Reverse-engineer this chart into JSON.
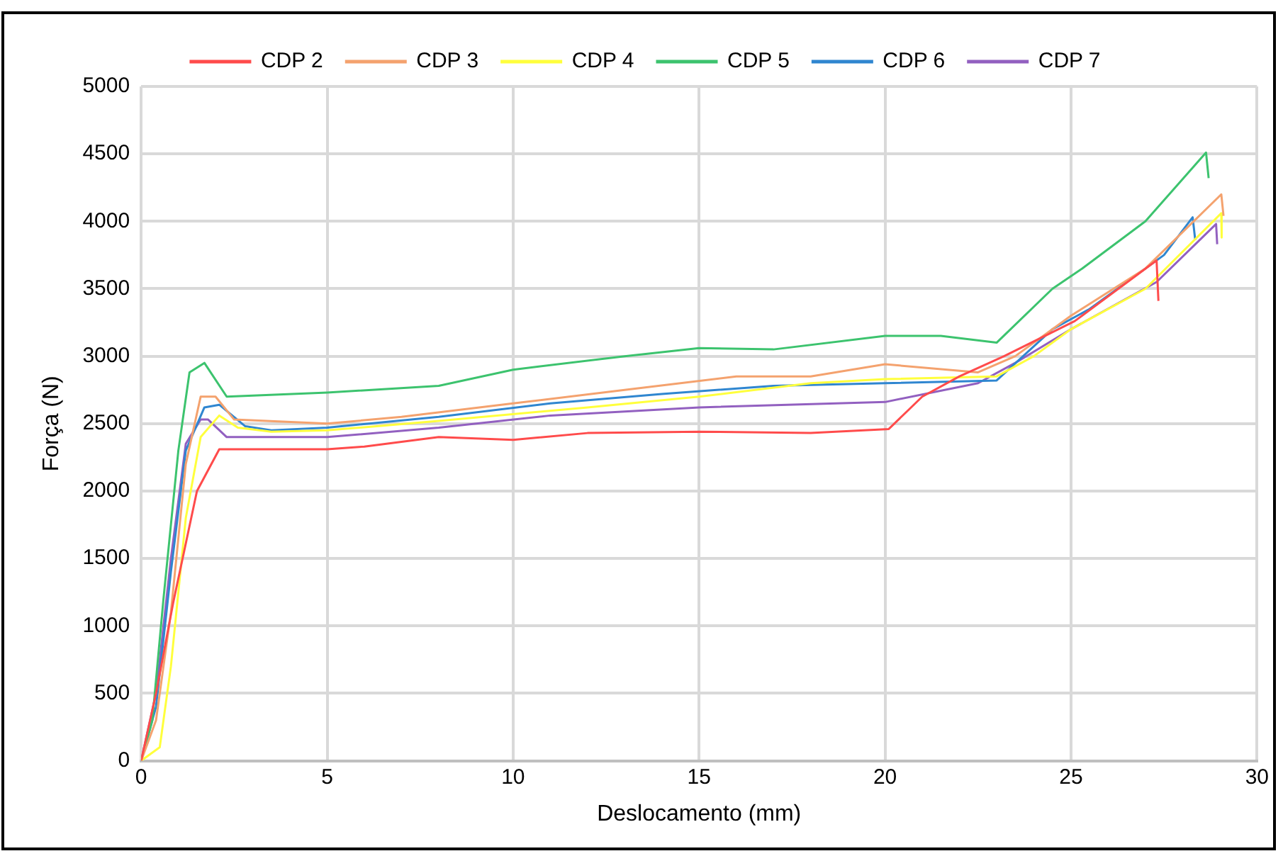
{
  "chart_data": {
    "type": "line",
    "xlabel": "Deslocamento (mm)",
    "ylabel": "Força (N)",
    "xlim": [
      0,
      30
    ],
    "xticks": [
      0,
      5,
      10,
      15,
      20,
      25,
      30
    ],
    "ylim": [
      0,
      5000
    ],
    "yticks": [
      0,
      500,
      1000,
      1500,
      2000,
      2500,
      3000,
      3500,
      4000,
      4500,
      5000
    ],
    "grid": true,
    "legend": "top",
    "marker": "none",
    "series": [
      {
        "name": "CDP 2",
        "color": "#ff4b4b",
        "x": [
          0,
          0.4,
          0.86,
          1.5,
          2.1,
          5,
          6,
          8,
          10,
          12,
          15,
          18,
          20.1,
          21,
          22,
          23.2,
          25.1,
          27.3,
          27.35
        ],
        "values": [
          0,
          500,
          1170,
          2000,
          2310,
          2310,
          2330,
          2400,
          2380,
          2430,
          2440,
          2430,
          2460,
          2700,
          2850,
          3000,
          3260,
          3710,
          3410
        ]
      },
      {
        "name": "CDP 3",
        "color": "#f4a26e",
        "x": [
          0,
          0.4,
          0.8,
          1.2,
          1.6,
          2,
          2.5,
          5,
          7,
          10,
          13,
          16,
          18,
          20,
          22.5,
          23.5,
          25,
          27,
          29.04,
          29.1
        ],
        "values": [
          0,
          300,
          1100,
          2200,
          2700,
          2700,
          2530,
          2500,
          2550,
          2650,
          2750,
          2850,
          2850,
          2940,
          2880,
          3000,
          3300,
          3650,
          4200,
          4040
        ]
      },
      {
        "name": "CDP 4",
        "color": "#ffff3c",
        "x": [
          0,
          0.5,
          0.8,
          1.2,
          1.6,
          2.1,
          2.6,
          3.5,
          5,
          8,
          12,
          15,
          18,
          20,
          23,
          24,
          25,
          27,
          29.04,
          29.05
        ],
        "values": [
          0,
          100,
          700,
          1800,
          2400,
          2560,
          2470,
          2440,
          2450,
          2520,
          2620,
          2700,
          2800,
          2830,
          2850,
          3000,
          3200,
          3500,
          4060,
          3880
        ]
      },
      {
        "name": "CDP 5",
        "color": "#3cc36e",
        "x": [
          0,
          0.3,
          0.6,
          1,
          1.3,
          1.7,
          2.3,
          5,
          8,
          10,
          13,
          15,
          17,
          20,
          21.5,
          23,
          24.5,
          25.3,
          27,
          28.63,
          28.7
        ],
        "values": [
          0,
          300,
          1200,
          2300,
          2880,
          2950,
          2700,
          2730,
          2780,
          2900,
          3000,
          3060,
          3050,
          3150,
          3150,
          3100,
          3500,
          3650,
          4000,
          4510,
          4320
        ]
      },
      {
        "name": "CDP 6",
        "color": "#2f86d0",
        "x": [
          0,
          0.4,
          0.8,
          1.2,
          1.7,
          2.1,
          2.8,
          3.5,
          5,
          8,
          11,
          14,
          17,
          20,
          23,
          24.5,
          25.5,
          27.5,
          28.27,
          28.34
        ],
        "values": [
          0,
          400,
          1400,
          2300,
          2620,
          2640,
          2480,
          2450,
          2470,
          2550,
          2650,
          2720,
          2780,
          2800,
          2820,
          3200,
          3350,
          3750,
          4030,
          3860
        ]
      },
      {
        "name": "CDP 7",
        "color": "#9260c0",
        "x": [
          0,
          0.4,
          0.8,
          1.2,
          1.6,
          1.8,
          2.3,
          5,
          8,
          11,
          15,
          20,
          22.5,
          23.5,
          25,
          27.3,
          28.9,
          28.93
        ],
        "values": [
          0,
          500,
          1500,
          2350,
          2530,
          2530,
          2400,
          2400,
          2470,
          2560,
          2620,
          2660,
          2800,
          2950,
          3200,
          3550,
          3980,
          3830
        ]
      }
    ]
  }
}
